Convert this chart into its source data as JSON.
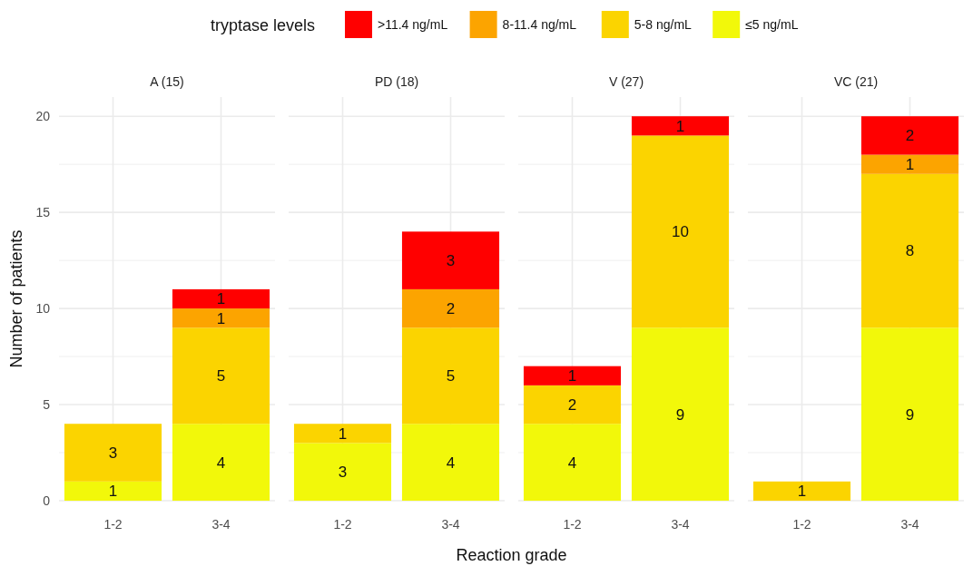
{
  "chart_data": [
    {
      "type": "bar",
      "title": "A (15)",
      "ylabel": "Number of patients",
      "legend_title": "tryptase levels",
      "legend": "top",
      "stacked": true,
      "data_labels": true,
      "grid": true,
      "categories": [
        "1-2",
        "3-4"
      ],
      "ylim": [
        0,
        21
      ],
      "yticks": [
        0,
        {
          "value": 2.5,
          "label": null
        },
        5,
        {
          "value": 7.5,
          "label": null
        },
        10,
        {
          "value": 12.5,
          "label": null
        },
        15,
        {
          "value": 17.5,
          "label": null
        },
        20
      ],
      "series": [
        {
          "name": "≤5 ng/mL",
          "color": "#f2f80a",
          "values": [
            1,
            4
          ]
        },
        {
          "name": "5-8 ng/mL",
          "color": "#fbd400",
          "values": [
            3,
            5
          ]
        },
        {
          "name": "8-11.4 ng/mL",
          "color": "#fca400",
          "values": [
            null,
            1
          ]
        },
        {
          "name": ">11.4 ng/mL",
          "color": "#ff0000",
          "values": [
            null,
            1
          ]
        }
      ]
    },
    {
      "type": "bar",
      "title": "PD (18)",
      "xlabel": "Reaction grade",
      "stacked": true,
      "data_labels": true,
      "grid": true,
      "tick_labels": "x",
      "categories": [
        "1-2",
        "3-4"
      ],
      "ylim": [
        0,
        21
      ],
      "yticks": [
        0,
        {
          "value": 2.5,
          "label": null
        },
        5,
        {
          "value": 7.5,
          "label": null
        },
        10,
        {
          "value": 12.5,
          "label": null
        },
        15,
        {
          "value": 17.5,
          "label": null
        },
        20
      ],
      "series": [
        {
          "color": "#f2f80a",
          "values": [
            3,
            4
          ]
        },
        {
          "color": "#fbd400",
          "values": [
            1,
            5
          ]
        },
        {
          "color": "#fca400",
          "values": [
            null,
            2
          ]
        },
        {
          "color": "#ff0000",
          "values": [
            null,
            3
          ]
        }
      ]
    },
    {
      "type": "bar",
      "title": "V (27)",
      "stacked": true,
      "data_labels": true,
      "grid": true,
      "tick_labels": "x",
      "categories": [
        "1-2",
        "3-4"
      ],
      "ylim": [
        0,
        21
      ],
      "yticks": [
        0,
        {
          "value": 2.5,
          "label": null
        },
        5,
        {
          "value": 7.5,
          "label": null
        },
        10,
        {
          "value": 12.5,
          "label": null
        },
        15,
        {
          "value": 17.5,
          "label": null
        },
        20
      ],
      "series": [
        {
          "color": "#f2f80a",
          "values": [
            4,
            9
          ]
        },
        {
          "color": "#fbd400",
          "values": [
            2,
            10
          ]
        },
        {
          "color": "#ff0000",
          "values": [
            1,
            1
          ]
        }
      ]
    },
    {
      "type": "bar",
      "title": "VC (21)",
      "stacked": true,
      "data_labels": true,
      "grid": true,
      "tick_labels": "x",
      "categories": [
        "1-2",
        "3-4"
      ],
      "ylim": [
        0,
        21
      ],
      "yticks": [
        0,
        {
          "value": 2.5,
          "label": null
        },
        5,
        {
          "value": 7.5,
          "label": null
        },
        10,
        {
          "value": 12.5,
          "label": null
        },
        15,
        {
          "value": 17.5,
          "label": null
        },
        20
      ],
      "series": [
        {
          "color": "#f2f80a",
          "values": [
            null,
            9
          ]
        },
        {
          "color": "#fbd400",
          "values": [
            1,
            8
          ]
        },
        {
          "color": "#fca400",
          "values": [
            null,
            1
          ]
        },
        {
          "color": "#ff0000",
          "values": [
            null,
            2
          ]
        }
      ]
    }
  ]
}
